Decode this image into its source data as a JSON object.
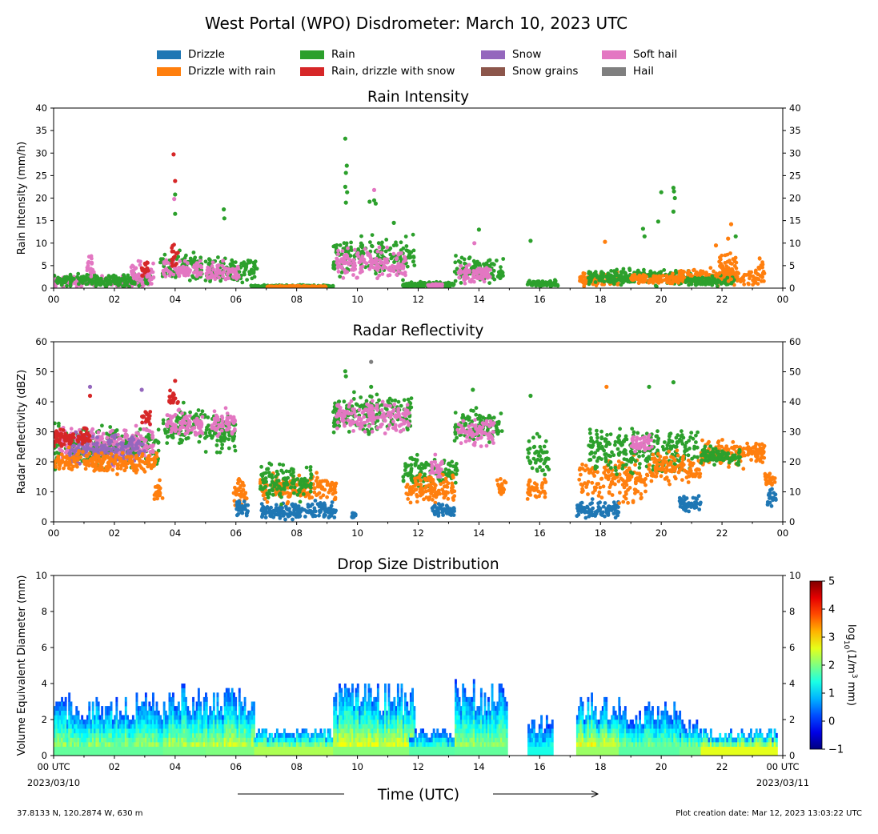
{
  "title": "West Portal (WPO) Disdrometer: March 10, 2023 UTC",
  "legend": [
    {
      "label": "Drizzle",
      "color": "#1f77b4"
    },
    {
      "label": "Drizzle with rain",
      "color": "#ff7f0e"
    },
    {
      "label": "Rain",
      "color": "#2ca02c"
    },
    {
      "label": "Rain, drizzle with snow",
      "color": "#d62728"
    },
    {
      "label": "Snow",
      "color": "#9467bd"
    },
    {
      "label": "Snow grains",
      "color": "#8c564b"
    },
    {
      "label": "Soft hail",
      "color": "#e377c2"
    },
    {
      "label": "Hail",
      "color": "#7f7f7f"
    }
  ],
  "xaxis": {
    "ticks": [
      "00",
      "02",
      "04",
      "06",
      "08",
      "10",
      "12",
      "14",
      "16",
      "18",
      "20",
      "22",
      "00"
    ],
    "first_tick_label": "00 UTC",
    "first_tick_date": "2023/03/10",
    "last_tick_label": "00 UTC",
    "last_tick_date": "2023/03/11",
    "label": "Time (UTC)"
  },
  "footer": {
    "location": "37.8133 N, 120.2874 W, 630 m",
    "created": "Plot creation date: Mar 12, 2023 13:03:22 UTC"
  },
  "colorbar": {
    "label": "log10(1/m3 mm)",
    "ticks": [
      "5",
      "4",
      "3",
      "2",
      "1",
      "0",
      "−1"
    ],
    "range": [
      -1,
      5
    ]
  },
  "chart_data": [
    {
      "type": "scatter",
      "title": "Rain Intensity",
      "ylabel": "Rain Intensity (mm/h)",
      "xlim": [
        0,
        24
      ],
      "ylim": [
        0,
        40
      ],
      "yticks": [
        "0",
        "5",
        "10",
        "15",
        "20",
        "25",
        "30",
        "35",
        "40"
      ],
      "segments": [
        {
          "category": "Soft hail",
          "x": [
            0,
            3.2
          ],
          "mean": 1.5,
          "spread": 1.5
        },
        {
          "category": "Rain",
          "x": [
            0,
            3.2
          ],
          "mean": 1.8,
          "spread": 1.8
        },
        {
          "category": "Soft hail",
          "x": [
            1.1,
            1.35
          ],
          "mean": 4,
          "spread": 4
        },
        {
          "category": "Soft hail",
          "x": [
            2.5,
            3.3
          ],
          "mean": 3.5,
          "spread": 3.5
        },
        {
          "category": "Rain, drizzle with snow",
          "x": [
            2.9,
            3.15
          ],
          "mean": 4,
          "spread": 2.5
        },
        {
          "category": "Rain",
          "x": [
            3.5,
            4.9
          ],
          "mean": 4.5,
          "spread": 4.5
        },
        {
          "category": "Soft hail",
          "x": [
            3.6,
            4.9
          ],
          "mean": 4,
          "spread": 3
        },
        {
          "category": "Rain, drizzle with snow",
          "x": [
            3.85,
            4.1
          ],
          "mean": 7,
          "spread": 5
        },
        {
          "category": "Rain",
          "x": [
            5.0,
            6.7
          ],
          "mean": 4,
          "spread": 4
        },
        {
          "category": "Soft hail",
          "x": [
            5.0,
            6.1
          ],
          "mean": 3.5,
          "spread": 3
        },
        {
          "category": "Rain",
          "x": [
            6.5,
            9.2
          ],
          "mean": 0.4,
          "spread": 0.4
        },
        {
          "category": "Drizzle with rain",
          "x": [
            7.0,
            9.0
          ],
          "mean": 0.3,
          "spread": 0.3
        },
        {
          "category": "Rain",
          "x": [
            9.2,
            11.9
          ],
          "mean": 7,
          "spread": 6
        },
        {
          "category": "Soft hail",
          "x": [
            9.3,
            11.6
          ],
          "mean": 5.5,
          "spread": 4.5
        },
        {
          "category": "Rain",
          "x": [
            11.5,
            13.2
          ],
          "mean": 0.8,
          "spread": 0.8
        },
        {
          "category": "Soft hail",
          "x": [
            12.3,
            12.8
          ],
          "mean": 0.6,
          "spread": 0.6
        },
        {
          "category": "Rain",
          "x": [
            13.2,
            14.8
          ],
          "mean": 4,
          "spread": 4
        },
        {
          "category": "Soft hail",
          "x": [
            13.3,
            14.4
          ],
          "mean": 3,
          "spread": 2.5
        },
        {
          "category": "Rain",
          "x": [
            15.6,
            16.6
          ],
          "mean": 1,
          "spread": 1
        },
        {
          "category": "Drizzle with rain",
          "x": [
            17.3,
            18.6
          ],
          "mean": 2,
          "spread": 2
        },
        {
          "category": "Rain",
          "x": [
            17.6,
            21.0
          ],
          "mean": 2.5,
          "spread": 2.5
        },
        {
          "category": "Drizzle with rain",
          "x": [
            19.0,
            20.6
          ],
          "mean": 2,
          "spread": 1.5
        },
        {
          "category": "Drizzle with rain",
          "x": [
            20.6,
            23.4
          ],
          "mean": 2.5,
          "spread": 2.5
        },
        {
          "category": "Rain",
          "x": [
            20.8,
            22.4
          ],
          "mean": 1.5,
          "spread": 1.5
        },
        {
          "category": "Drizzle with rain",
          "x": [
            21.9,
            22.5
          ],
          "mean": 5,
          "spread": 4
        },
        {
          "category": "Drizzle with rain",
          "x": [
            23.2,
            23.35
          ],
          "mean": 5,
          "spread": 3.5
        }
      ],
      "spikes": [
        {
          "category": "Rain, drizzle with snow",
          "x": 3.95,
          "y": 29.7
        },
        {
          "category": "Rain, drizzle with snow",
          "x": 4.0,
          "y": 23.8
        },
        {
          "category": "Rain",
          "x": 4.0,
          "y": 20.8
        },
        {
          "category": "Soft hail",
          "x": 3.97,
          "y": 19.8
        },
        {
          "category": "Rain",
          "x": 4.0,
          "y": 16.5
        },
        {
          "category": "Rain",
          "x": 5.6,
          "y": 17.5
        },
        {
          "category": "Rain",
          "x": 5.62,
          "y": 15.5
        },
        {
          "category": "Rain",
          "x": 9.6,
          "y": 33.2
        },
        {
          "category": "Rain",
          "x": 9.65,
          "y": 27.2
        },
        {
          "category": "Rain",
          "x": 9.62,
          "y": 25.6
        },
        {
          "category": "Rain",
          "x": 9.6,
          "y": 22.5
        },
        {
          "category": "Rain",
          "x": 9.66,
          "y": 21.3
        },
        {
          "category": "Rain",
          "x": 9.62,
          "y": 19
        },
        {
          "category": "Soft hail",
          "x": 10.55,
          "y": 21.8
        },
        {
          "category": "Rain",
          "x": 10.4,
          "y": 19.2
        },
        {
          "category": "Rain",
          "x": 10.55,
          "y": 19.5
        },
        {
          "category": "Rain",
          "x": 10.6,
          "y": 18.8
        },
        {
          "category": "Rain",
          "x": 11.2,
          "y": 14.5
        },
        {
          "category": "Rain",
          "x": 14.0,
          "y": 13.0
        },
        {
          "category": "Soft hail",
          "x": 13.85,
          "y": 10
        },
        {
          "category": "Rain",
          "x": 15.7,
          "y": 10.5
        },
        {
          "category": "Drizzle with rain",
          "x": 18.15,
          "y": 10.3
        },
        {
          "category": "Rain",
          "x": 19.4,
          "y": 13.2
        },
        {
          "category": "Rain",
          "x": 19.45,
          "y": 11.5
        },
        {
          "category": "Rain",
          "x": 19.9,
          "y": 14.8
        },
        {
          "category": "Rain",
          "x": 20.0,
          "y": 21.3
        },
        {
          "category": "Rain",
          "x": 20.4,
          "y": 22.3
        },
        {
          "category": "Rain",
          "x": 20.42,
          "y": 21.5
        },
        {
          "category": "Rain",
          "x": 20.45,
          "y": 20
        },
        {
          "category": "Rain",
          "x": 20.4,
          "y": 17
        },
        {
          "category": "Drizzle with rain",
          "x": 22.3,
          "y": 14.2
        },
        {
          "category": "Drizzle with rain",
          "x": 22.2,
          "y": 11
        },
        {
          "category": "Drizzle with rain",
          "x": 21.8,
          "y": 9.5
        },
        {
          "category": "Rain",
          "x": 22.45,
          "y": 11.5
        }
      ]
    },
    {
      "type": "scatter",
      "title": "Radar Reflectivity",
      "ylabel": "Radar Reflectivity (dBZ)",
      "xlim": [
        0,
        24
      ],
      "ylim": [
        0,
        60
      ],
      "yticks": [
        "0",
        "10",
        "20",
        "30",
        "40",
        "50",
        "60"
      ],
      "segments": [
        {
          "category": "Rain",
          "x": [
            0,
            3.5
          ],
          "mean": 25,
          "spread": 9
        },
        {
          "category": "Soft hail",
          "x": [
            0.2,
            3.3
          ],
          "mean": 26,
          "spread": 8
        },
        {
          "category": "Snow",
          "x": [
            0.5,
            3.0
          ],
          "mean": 24,
          "spread": 7
        },
        {
          "category": "Rain, drizzle with snow",
          "x": [
            0.0,
            1.2
          ],
          "mean": 28,
          "spread": 4
        },
        {
          "category": "Drizzle with rain",
          "x": [
            0.0,
            3.4
          ],
          "mean": 20,
          "spread": 5
        },
        {
          "category": "Rain, drizzle with snow",
          "x": [
            2.9,
            3.2
          ],
          "mean": 35,
          "spread": 4
        },
        {
          "category": "Drizzle with rain",
          "x": [
            3.3,
            3.6
          ],
          "mean": 10,
          "spread": 5
        },
        {
          "category": "Rain",
          "x": [
            3.6,
            5.0
          ],
          "mean": 32,
          "spread": 8
        },
        {
          "category": "Soft hail",
          "x": [
            3.7,
            4.9
          ],
          "mean": 33,
          "spread": 6
        },
        {
          "category": "Rain, drizzle with snow",
          "x": [
            3.8,
            4.1
          ],
          "mean": 41,
          "spread": 4
        },
        {
          "category": "Rain",
          "x": [
            5.0,
            6.0
          ],
          "mean": 30,
          "spread": 9
        },
        {
          "category": "Soft hail",
          "x": [
            5.2,
            6.0
          ],
          "mean": 33,
          "spread": 6
        },
        {
          "category": "Drizzle with rain",
          "x": [
            5.9,
            6.4
          ],
          "mean": 10,
          "spread": 7
        },
        {
          "category": "Drizzle",
          "x": [
            6.0,
            6.4
          ],
          "mean": 4,
          "spread": 4
        },
        {
          "category": "Drizzle",
          "x": [
            6.8,
            9.3
          ],
          "mean": 4,
          "spread": 4
        },
        {
          "category": "Drizzle with rain",
          "x": [
            6.8,
            9.3
          ],
          "mean": 11,
          "spread": 6
        },
        {
          "category": "Rain",
          "x": [
            6.8,
            8.5
          ],
          "mean": 13,
          "spread": 8
        },
        {
          "category": "Drizzle",
          "x": [
            9.8,
            9.95
          ],
          "mean": 2,
          "spread": 2
        },
        {
          "category": "Rain",
          "x": [
            9.2,
            11.8
          ],
          "mean": 36,
          "spread": 9
        },
        {
          "category": "Soft hail",
          "x": [
            9.3,
            11.7
          ],
          "mean": 35,
          "spread": 7
        },
        {
          "category": "Rain",
          "x": [
            11.5,
            13.3
          ],
          "mean": 17,
          "spread": 8
        },
        {
          "category": "Drizzle with rain",
          "x": [
            11.6,
            13.2
          ],
          "mean": 11,
          "spread": 6
        },
        {
          "category": "Soft hail",
          "x": [
            12.4,
            12.8
          ],
          "mean": 18,
          "spread": 5
        },
        {
          "category": "Drizzle",
          "x": [
            12.4,
            13.2
          ],
          "mean": 4,
          "spread": 3
        },
        {
          "category": "Rain",
          "x": [
            13.2,
            14.8
          ],
          "mean": 32,
          "spread": 8
        },
        {
          "category": "Soft hail",
          "x": [
            13.3,
            14.5
          ],
          "mean": 30,
          "spread": 6
        },
        {
          "category": "Drizzle with rain",
          "x": [
            14.6,
            14.9
          ],
          "mean": 12,
          "spread": 5
        },
        {
          "category": "Rain",
          "x": [
            15.6,
            16.3
          ],
          "mean": 22,
          "spread": 10
        },
        {
          "category": "Drizzle with rain",
          "x": [
            15.6,
            16.2
          ],
          "mean": 11,
          "spread": 5
        },
        {
          "category": "Drizzle",
          "x": [
            17.2,
            18.6
          ],
          "mean": 4,
          "spread": 4
        },
        {
          "category": "Drizzle with rain",
          "x": [
            17.3,
            19.5
          ],
          "mean": 14,
          "spread": 10
        },
        {
          "category": "Rain",
          "x": [
            17.6,
            21.2
          ],
          "mean": 24,
          "spread": 10
        },
        {
          "category": "Soft hail",
          "x": [
            19.0,
            19.7
          ],
          "mean": 26,
          "spread": 4
        },
        {
          "category": "Drizzle with rain",
          "x": [
            19.5,
            21.3
          ],
          "mean": 18,
          "spread": 7
        },
        {
          "category": "Drizzle",
          "x": [
            20.6,
            21.3
          ],
          "mean": 6,
          "spread": 4
        },
        {
          "category": "Drizzle with rain",
          "x": [
            21.3,
            23.4
          ],
          "mean": 23,
          "spread": 6
        },
        {
          "category": "Rain",
          "x": [
            21.3,
            22.6
          ],
          "mean": 22,
          "spread": 4
        },
        {
          "category": "Drizzle with rain",
          "x": [
            23.4,
            23.75
          ],
          "mean": 14,
          "spread": 4
        },
        {
          "category": "Drizzle",
          "x": [
            23.5,
            23.8
          ],
          "mean": 8,
          "spread": 7
        }
      ],
      "spikes": [
        {
          "category": "Hail",
          "x": 10.45,
          "y": 53.3
        },
        {
          "category": "Rain",
          "x": 9.6,
          "y": 50.2
        },
        {
          "category": "Rain",
          "x": 9.62,
          "y": 48.5
        },
        {
          "category": "Rain, drizzle with snow",
          "x": 4.0,
          "y": 47
        },
        {
          "category": "Snow",
          "x": 1.2,
          "y": 45
        },
        {
          "category": "Rain, drizzle with snow",
          "x": 1.2,
          "y": 42
        },
        {
          "category": "Snow",
          "x": 2.9,
          "y": 44
        },
        {
          "category": "Rain",
          "x": 10.45,
          "y": 45
        },
        {
          "category": "Drizzle with rain",
          "x": 18.2,
          "y": 45
        },
        {
          "category": "Rain",
          "x": 20.4,
          "y": 46.5
        },
        {
          "category": "Rain",
          "x": 19.6,
          "y": 45
        },
        {
          "category": "Rain",
          "x": 13.8,
          "y": 44
        },
        {
          "category": "Rain",
          "x": 15.7,
          "y": 42
        }
      ]
    },
    {
      "type": "heatmap",
      "title": "Drop Size Distribution",
      "ylabel": "Volume Equivalent Diameter (mm)",
      "xlim": [
        0,
        24
      ],
      "ylim": [
        0,
        10
      ],
      "yticks": [
        "0",
        "2",
        "4",
        "6",
        "8",
        "10"
      ],
      "colorscale": "jet",
      "zlim": [
        -1,
        5
      ],
      "events": [
        {
          "x": [
            0.0,
            3.6
          ],
          "top": 3.5,
          "core": 2.6
        },
        {
          "x": [
            3.6,
            5.0
          ],
          "top": 4.0,
          "core": 2.8
        },
        {
          "x": [
            5.0,
            6.6
          ],
          "top": 3.8,
          "core": 2.9
        },
        {
          "x": [
            6.6,
            9.3
          ],
          "top": 1.6,
          "core": 3.4
        },
        {
          "x": [
            9.2,
            11.9
          ],
          "top": 4.2,
          "core": 3.0
        },
        {
          "x": [
            11.7,
            13.2
          ],
          "top": 1.6,
          "core": 2.5
        },
        {
          "x": [
            13.2,
            14.9
          ],
          "top": 4.2,
          "core": 2.6
        },
        {
          "x": [
            15.6,
            16.4
          ],
          "top": 2.2,
          "core": 1.8
        },
        {
          "x": [
            17.2,
            18.6
          ],
          "top": 3.4,
          "core": 3.2
        },
        {
          "x": [
            18.6,
            20.6
          ],
          "top": 3.0,
          "core": 2.5
        },
        {
          "x": [
            20.6,
            21.3
          ],
          "top": 2.0,
          "core": 2.8
        },
        {
          "x": [
            21.3,
            23.8
          ],
          "top": 1.6,
          "core": 4.0
        }
      ]
    }
  ]
}
